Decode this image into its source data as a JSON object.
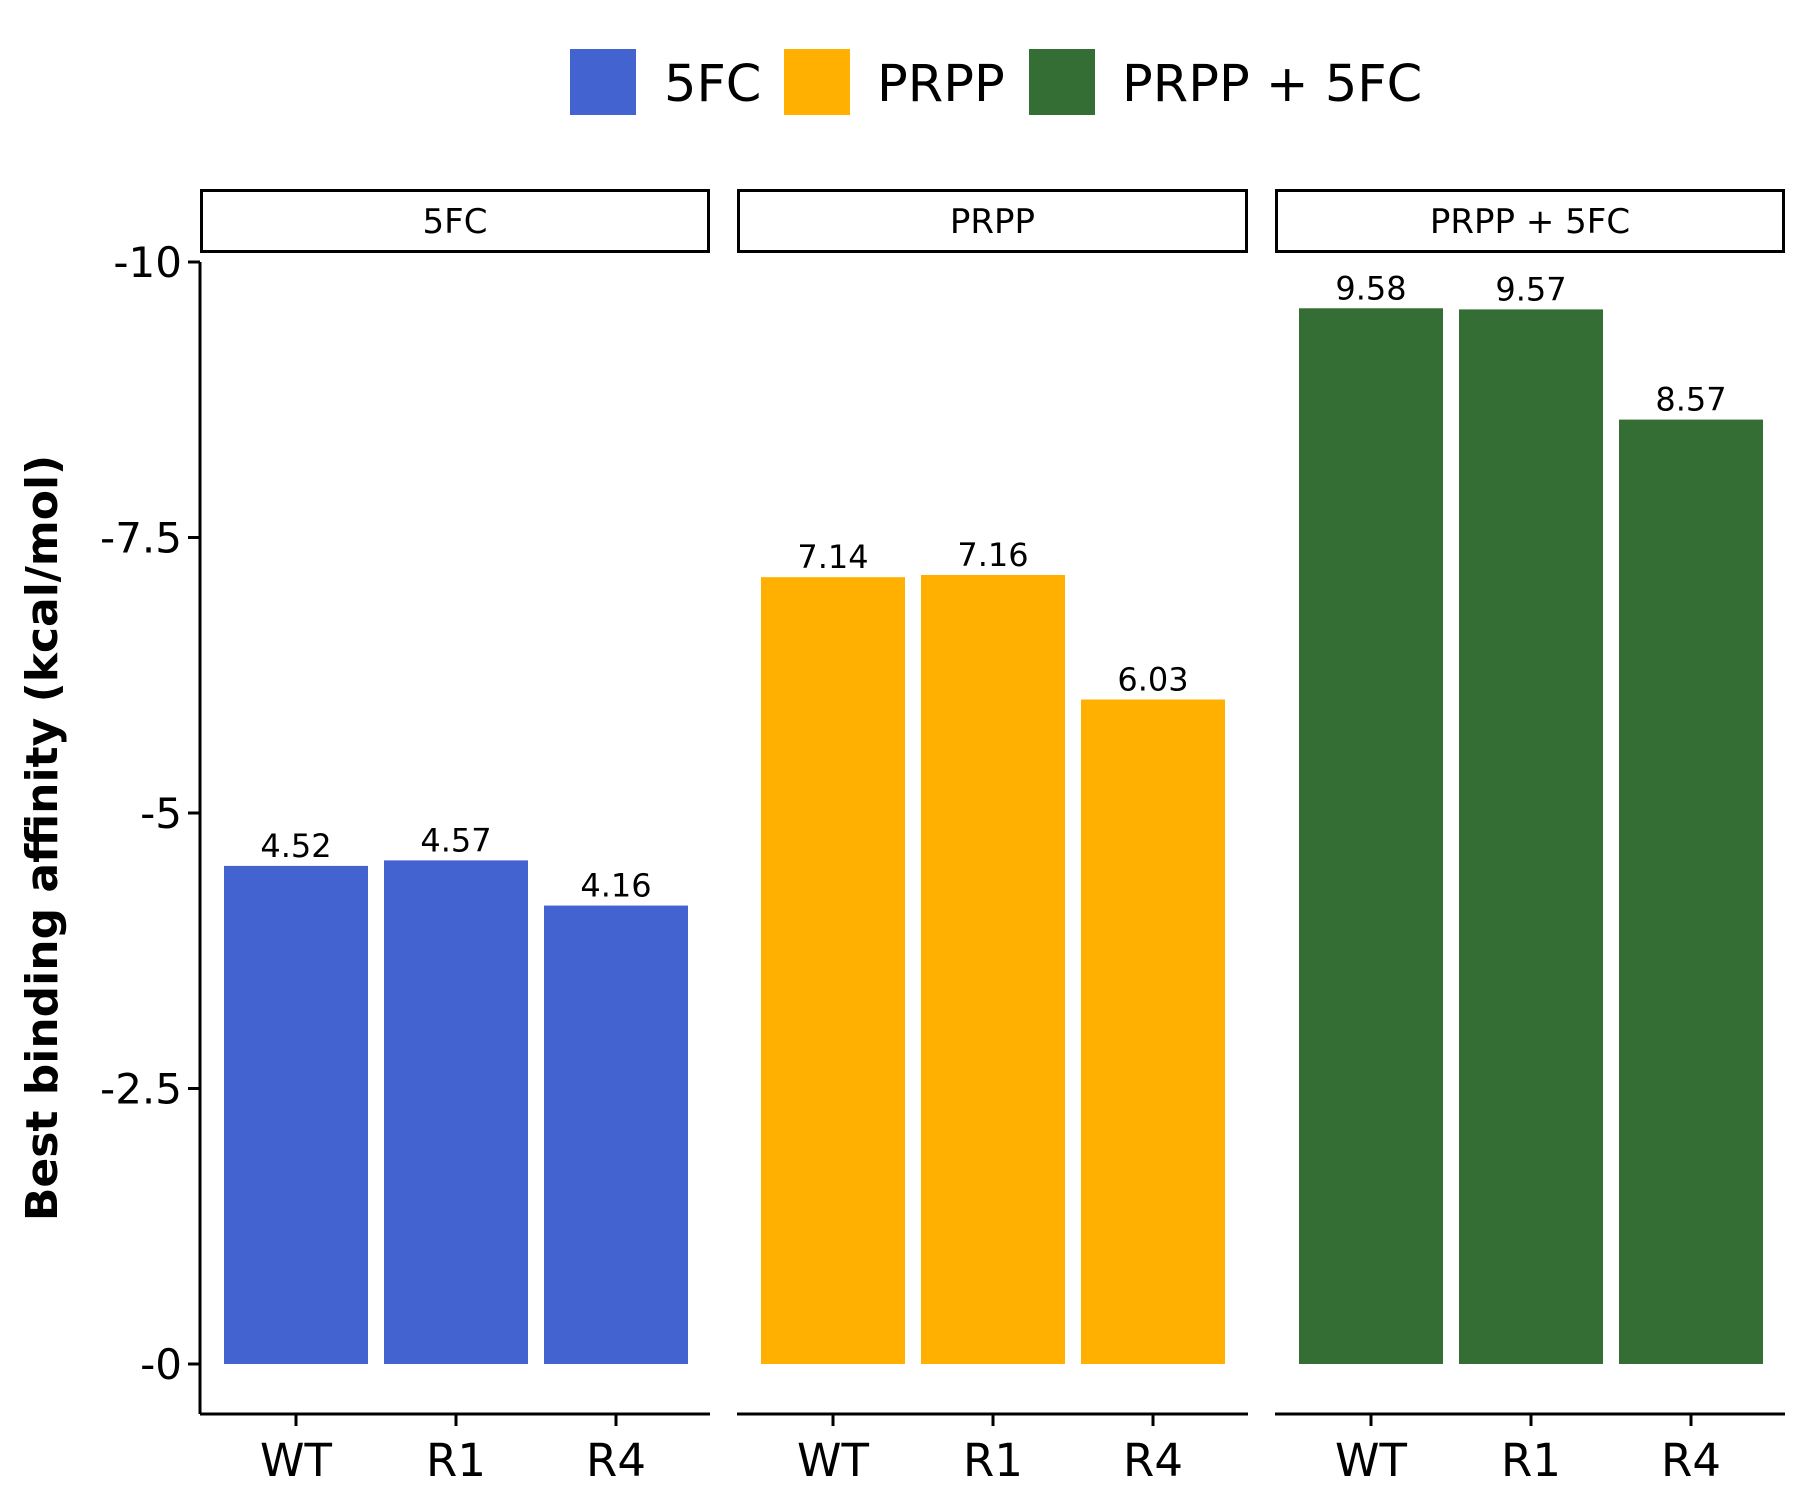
{
  "chart_data": {
    "type": "bar",
    "ylabel": "Best binding affinity (kcal/mol)",
    "y_axis_reversed": true,
    "ylim": [
      0,
      -10
    ],
    "yticks": [
      {
        "value": 0,
        "label": "-0"
      },
      {
        "value": -2.5,
        "label": "-2.5"
      },
      {
        "value": -5,
        "label": "-5"
      },
      {
        "value": -7.5,
        "label": "-7.5"
      },
      {
        "value": -10,
        "label": "-10"
      }
    ],
    "categories": [
      "WT",
      "R1",
      "R4"
    ],
    "legend": {
      "position": "top",
      "entries": [
        {
          "label": "5FC",
          "color": "#4363d0"
        },
        {
          "label": "PRPP",
          "color": "#ffb000"
        },
        {
          "label": "PRPP + 5FC",
          "color": "#356e35"
        }
      ]
    },
    "panels": [
      {
        "strip": "5FC",
        "color": "#4363d0",
        "categories": [
          "WT",
          "R1",
          "R4"
        ],
        "values": [
          -4.52,
          -4.57,
          -4.16
        ],
        "value_labels": [
          "4.52",
          "4.57",
          "4.16"
        ]
      },
      {
        "strip": "PRPP",
        "color": "#ffb000",
        "categories": [
          "WT",
          "R1",
          "R4"
        ],
        "values": [
          -7.14,
          -7.16,
          -6.03
        ],
        "value_labels": [
          "7.14",
          "7.16",
          "6.03"
        ]
      },
      {
        "strip": "PRPP + 5FC",
        "color": "#356e35",
        "categories": [
          "WT",
          "R1",
          "R4"
        ],
        "values": [
          -9.58,
          -9.57,
          -8.57
        ],
        "value_labels": [
          "9.58",
          "9.57",
          "8.57"
        ]
      }
    ],
    "grid": false
  }
}
